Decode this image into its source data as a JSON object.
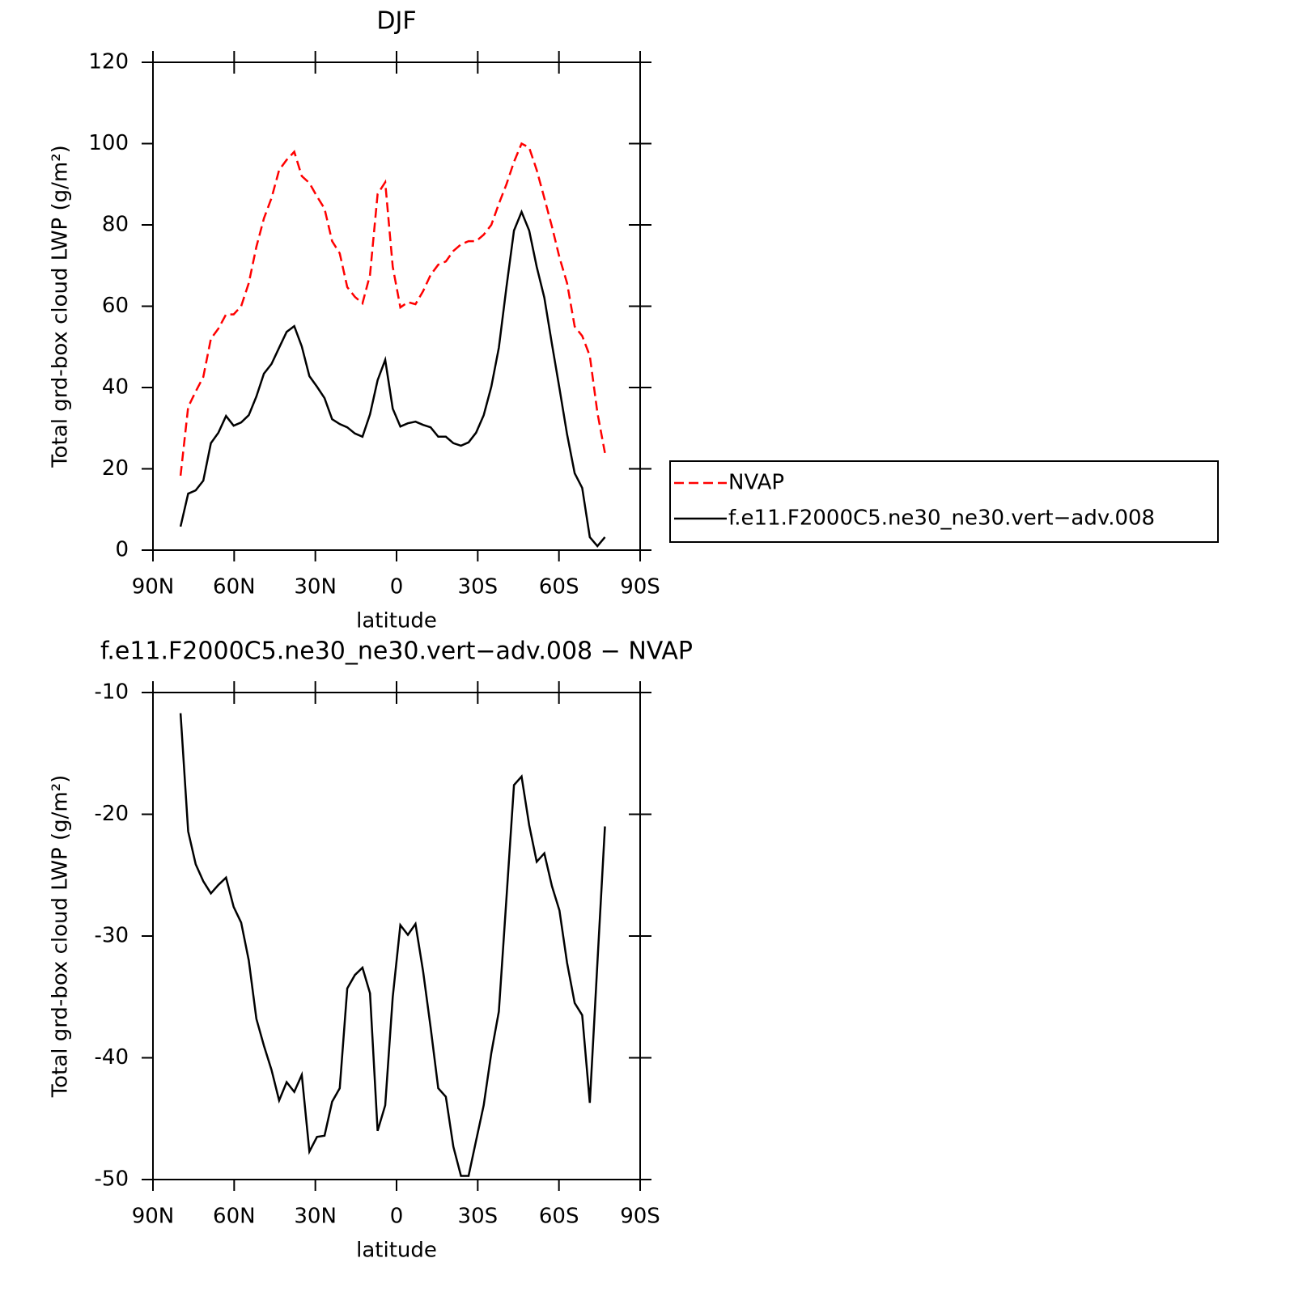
{
  "chart_data": [
    {
      "type": "line",
      "title": "DJF",
      "xlabel": "latitude",
      "ylabel": "Total grd-box cloud LWP (g/m²)",
      "x": [
        79.8,
        77,
        74.2,
        71.4,
        68.6,
        65.8,
        63,
        60.2,
        57.4,
        54.6,
        51.8,
        49,
        46.2,
        43.4,
        40.6,
        37.8,
        35,
        32.2,
        29.4,
        26.6,
        23.8,
        21,
        18.2,
        15.4,
        12.6,
        9.8,
        7,
        4.2,
        1.4,
        -1.4,
        -4.2,
        -7,
        -9.8,
        -12.6,
        -15.4,
        -18.2,
        -21,
        -23.8,
        -26.6,
        -29.4,
        -32.2,
        -35,
        -37.8,
        -40.6,
        -43.4,
        -46.2,
        -49,
        -51.8,
        -54.6,
        -57.4,
        -60.2,
        -63,
        -65.8,
        -68.6,
        -71.4,
        -74.2,
        -77
      ],
      "series": [
        {
          "name": "NVAP",
          "color": "#ff0000",
          "style": "dashed",
          "values": [
            18.3,
            35.2,
            39,
            42.6,
            52,
            54.5,
            58,
            58,
            60,
            65.7,
            74.6,
            81.6,
            86.6,
            93.5,
            96,
            98,
            92,
            90.3,
            87,
            84,
            76,
            73,
            64.7,
            62.3,
            60.7,
            67.7,
            87.6,
            90.5,
            69.7,
            59.7,
            61,
            60.5,
            63.7,
            67.7,
            70.2,
            71,
            73.6,
            75.2,
            76,
            76,
            77.6,
            80,
            85.2,
            90,
            95.5,
            100,
            99,
            93.5,
            86.6,
            79.6,
            72,
            65.7,
            55,
            52.7,
            47.8,
            33.8,
            23.9
          ]
        },
        {
          "name": "f.e11.F2000C5.ne30_ne30.vert−adv.008",
          "color": "#000000",
          "style": "solid",
          "values": [
            5.8,
            13.9,
            14.7,
            17.1,
            26.3,
            28.9,
            33,
            30.6,
            31.4,
            33.2,
            37.8,
            43.4,
            45.8,
            49.8,
            53.7,
            55.1,
            50.1,
            42.8,
            40.2,
            37.4,
            32.2,
            31,
            30.2,
            28.7,
            27.9,
            33.4,
            41.8,
            46.8,
            34.8,
            30.4,
            31.2,
            31.6,
            30.8,
            30.2,
            27.9,
            27.9,
            26.3,
            25.7,
            26.5,
            28.9,
            33.2,
            40.2,
            49.8,
            64.7,
            78.6,
            83.2,
            78.6,
            69.7,
            62.1,
            50.7,
            39.8,
            28.5,
            18.9,
            15.3,
            3.2,
            1,
            3.2
          ]
        }
      ],
      "xlim": [
        90,
        -90
      ],
      "xticks": [
        {
          "value": 90,
          "label": "90N"
        },
        {
          "value": 60,
          "label": "60N"
        },
        {
          "value": 30,
          "label": "30N"
        },
        0,
        {
          "value": -30,
          "label": "30S"
        },
        {
          "value": -60,
          "label": "60S"
        },
        {
          "value": -90,
          "label": "90S"
        }
      ],
      "ylim": [
        0,
        120
      ],
      "yticks": [
        0,
        20,
        40,
        60,
        80,
        100,
        120
      ],
      "legend": "right"
    },
    {
      "type": "line",
      "title": "f.e11.F2000C5.ne30_ne30.vert−adv.008 − NVAP",
      "xlabel": "latitude",
      "ylabel": "Total grd-box cloud LWP (g/m²)",
      "x": [
        79.8,
        77,
        74.2,
        71.4,
        68.6,
        65.8,
        63,
        60.2,
        57.4,
        54.6,
        51.8,
        49,
        46.2,
        43.4,
        40.6,
        37.8,
        35,
        32.2,
        29.4,
        26.6,
        23.8,
        21,
        18.2,
        15.4,
        12.6,
        9.8,
        7,
        4.2,
        1.4,
        -1.4,
        -4.2,
        -7,
        -9.8,
        -12.6,
        -15.4,
        -18.2,
        -21,
        -23.8,
        -26.6,
        -29.4,
        -32.2,
        -35,
        -37.8,
        -40.6,
        -43.4,
        -46.2,
        -49,
        -51.8,
        -54.6,
        -57.4,
        -60.2,
        -63,
        -65.8,
        -68.6,
        -71.4,
        -74.2,
        -77
      ],
      "series": [
        {
          "color": "#000000",
          "style": "solid",
          "values": [
            -11.7,
            -21.4,
            -24.1,
            -25.5,
            -26.5,
            -25.8,
            -25.2,
            -27.6,
            -28.9,
            -32,
            -36.8,
            -39,
            -41,
            -43.5,
            -42,
            -42.8,
            -41.4,
            -47.7,
            -46.5,
            -46.4,
            -43.6,
            -42.5,
            -34.3,
            -33.2,
            -32.6,
            -34.7,
            -46,
            -43.9,
            -35,
            -29.1,
            -29.9,
            -29,
            -32.9,
            -37.5,
            -42.5,
            -43.2,
            -47.3,
            -49.7,
            -49.7,
            -46.8,
            -43.9,
            -39.6,
            -36.2,
            -26.9,
            -17.6,
            -16.9,
            -20.9,
            -23.9,
            -23.2,
            -25.9,
            -27.9,
            -32.2,
            -35.5,
            -36.5,
            -43.7,
            -32.2,
            -21
          ]
        }
      ],
      "xlim": [
        90,
        -90
      ],
      "xticks": [
        {
          "value": 90,
          "label": "90N"
        },
        {
          "value": 60,
          "label": "60N"
        },
        {
          "value": 30,
          "label": "30N"
        },
        0,
        {
          "value": -30,
          "label": "30S"
        },
        {
          "value": -60,
          "label": "60S"
        },
        {
          "value": -90,
          "label": "90S"
        }
      ],
      "ylim": [
        -50,
        -10
      ],
      "yticks": [
        -50,
        -40,
        -30,
        -20,
        -10
      ]
    }
  ]
}
